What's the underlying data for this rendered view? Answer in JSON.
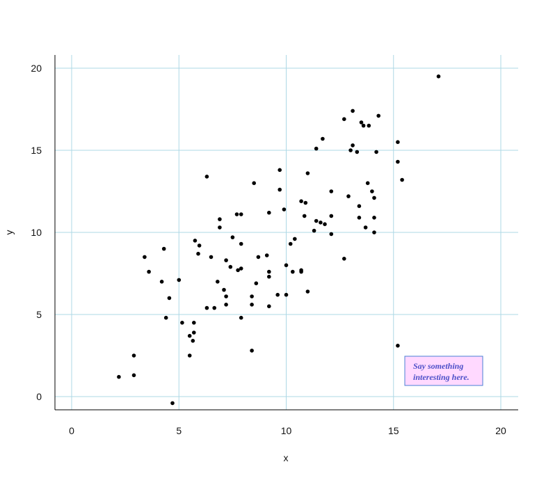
{
  "chart_data": {
    "type": "scatter",
    "title": "",
    "xlabel": "x",
    "ylabel": "y",
    "xlim": [
      -1,
      20.8
    ],
    "ylim": [
      -0.8,
      20.8
    ],
    "xticks": [
      0,
      5,
      10,
      15,
      20
    ],
    "yticks": [
      0,
      5,
      10,
      15,
      20
    ],
    "grid": true,
    "colors": {
      "grid": "#add8e6",
      "axis": "#000000",
      "point": "#000000",
      "annotation_fill": "#ffd9ff",
      "annotation_border": "#4a7fd4",
      "annotation_text": "#4d50c8"
    },
    "annotation": {
      "lines": [
        "Say something",
        "interesting here."
      ],
      "position": "bottom-right"
    },
    "points": [
      [
        17.1,
        19.5
      ],
      [
        15.2,
        3.1
      ],
      [
        13.1,
        17.4
      ],
      [
        12.7,
        16.9
      ],
      [
        13.5,
        16.7
      ],
      [
        13.6,
        16.5
      ],
      [
        13.85,
        16.5
      ],
      [
        14.3,
        17.1
      ],
      [
        11.7,
        15.7
      ],
      [
        11.4,
        15.1
      ],
      [
        13.1,
        15.3
      ],
      [
        13.0,
        15.0
      ],
      [
        13.3,
        14.9
      ],
      [
        14.2,
        14.9
      ],
      [
        15.2,
        15.5
      ],
      [
        15.2,
        14.3
      ],
      [
        15.4,
        13.2
      ],
      [
        13.8,
        13.0
      ],
      [
        14.0,
        12.5
      ],
      [
        14.1,
        12.1
      ],
      [
        12.9,
        12.2
      ],
      [
        13.4,
        11.6
      ],
      [
        13.4,
        10.9
      ],
      [
        14.1,
        10.9
      ],
      [
        13.7,
        10.3
      ],
      [
        14.1,
        10.0
      ],
      [
        12.1,
        12.5
      ],
      [
        11.0,
        13.6
      ],
      [
        10.7,
        11.9
      ],
      [
        10.9,
        11.8
      ],
      [
        11.4,
        10.7
      ],
      [
        11.6,
        10.6
      ],
      [
        11.8,
        10.5
      ],
      [
        12.1,
        11.0
      ],
      [
        12.1,
        9.9
      ],
      [
        10.85,
        11.0
      ],
      [
        11.3,
        10.1
      ],
      [
        12.7,
        8.4
      ],
      [
        9.7,
        13.8
      ],
      [
        9.7,
        12.6
      ],
      [
        9.9,
        11.4
      ],
      [
        9.2,
        11.2
      ],
      [
        8.5,
        13.0
      ],
      [
        10.4,
        9.6
      ],
      [
        10.2,
        9.3
      ],
      [
        10.0,
        8.0
      ],
      [
        10.3,
        7.6
      ],
      [
        10.7,
        7.7
      ],
      [
        10.7,
        7.6
      ],
      [
        11.0,
        6.4
      ],
      [
        9.6,
        6.2
      ],
      [
        10.0,
        6.2
      ],
      [
        9.2,
        5.5
      ],
      [
        9.2,
        7.6
      ],
      [
        9.2,
        7.3
      ],
      [
        9.1,
        8.6
      ],
      [
        8.7,
        8.5
      ],
      [
        8.6,
        6.9
      ],
      [
        8.4,
        6.1
      ],
      [
        8.4,
        5.6
      ],
      [
        8.4,
        2.8
      ],
      [
        7.7,
        11.1
      ],
      [
        7.9,
        11.1
      ],
      [
        6.9,
        10.8
      ],
      [
        6.9,
        10.3
      ],
      [
        7.5,
        9.7
      ],
      [
        7.9,
        9.3
      ],
      [
        6.3,
        13.4
      ],
      [
        5.75,
        9.5
      ],
      [
        5.95,
        9.2
      ],
      [
        5.9,
        8.7
      ],
      [
        6.5,
        8.5
      ],
      [
        7.2,
        8.3
      ],
      [
        7.4,
        7.9
      ],
      [
        7.75,
        7.7
      ],
      [
        7.9,
        7.8
      ],
      [
        6.8,
        7.0
      ],
      [
        7.1,
        6.5
      ],
      [
        7.2,
        6.1
      ],
      [
        7.2,
        5.6
      ],
      [
        6.3,
        5.4
      ],
      [
        6.65,
        5.4
      ],
      [
        7.9,
        4.8
      ],
      [
        5.0,
        7.1
      ],
      [
        5.15,
        4.5
      ],
      [
        5.7,
        4.5
      ],
      [
        5.7,
        3.9
      ],
      [
        5.5,
        3.7
      ],
      [
        5.65,
        3.4
      ],
      [
        5.5,
        2.5
      ],
      [
        4.7,
        -0.4
      ],
      [
        4.3,
        9.0
      ],
      [
        4.2,
        7.0
      ],
      [
        4.4,
        4.8
      ],
      [
        4.55,
        6.0
      ],
      [
        3.4,
        8.5
      ],
      [
        3.6,
        7.6
      ],
      [
        2.9,
        2.5
      ],
      [
        2.9,
        1.3
      ],
      [
        2.2,
        1.2
      ]
    ]
  }
}
